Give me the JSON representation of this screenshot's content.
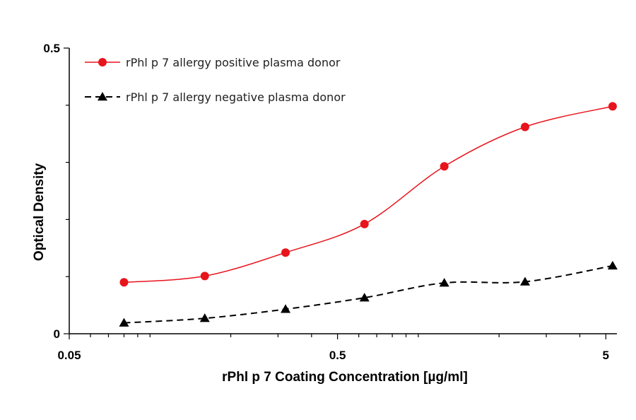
{
  "chart_data": {
    "type": "line",
    "xlabel": "rPhl p 7 Coating Concentration [µg/ml]",
    "ylabel": "Optical Density",
    "x_scale": "log",
    "xlim": [
      0.05,
      5.5
    ],
    "ylim": [
      0,
      0.5
    ],
    "x_ticks": [
      {
        "value": 0.05,
        "label": "0.05"
      },
      {
        "value": 0.5,
        "label": "0.5"
      },
      {
        "value": 5,
        "label": "5"
      }
    ],
    "y_ticks": [
      {
        "value": 0,
        "label": "0"
      },
      {
        "value": 0.5,
        "label": "0.5"
      }
    ],
    "grid": false,
    "legend_position": "top-left",
    "series": [
      {
        "name": "rPhl p 7 allergy positive plasma donor",
        "color": "#e8141c",
        "line_style": "solid",
        "marker": "circle",
        "x": [
          0.08,
          0.16,
          0.32,
          0.63,
          1.25,
          2.5,
          5.3
        ],
        "y": [
          0.09,
          0.101,
          0.142,
          0.192,
          0.293,
          0.362,
          0.398
        ]
      },
      {
        "name": "rPhl p 7 allergy negative plasma donor",
        "color": "#000000",
        "line_style": "dashed",
        "marker": "triangle",
        "x": [
          0.08,
          0.16,
          0.32,
          0.63,
          1.25,
          2.5,
          5.3
        ],
        "y": [
          0.019,
          0.027,
          0.043,
          0.063,
          0.089,
          0.091,
          0.119
        ]
      }
    ]
  }
}
